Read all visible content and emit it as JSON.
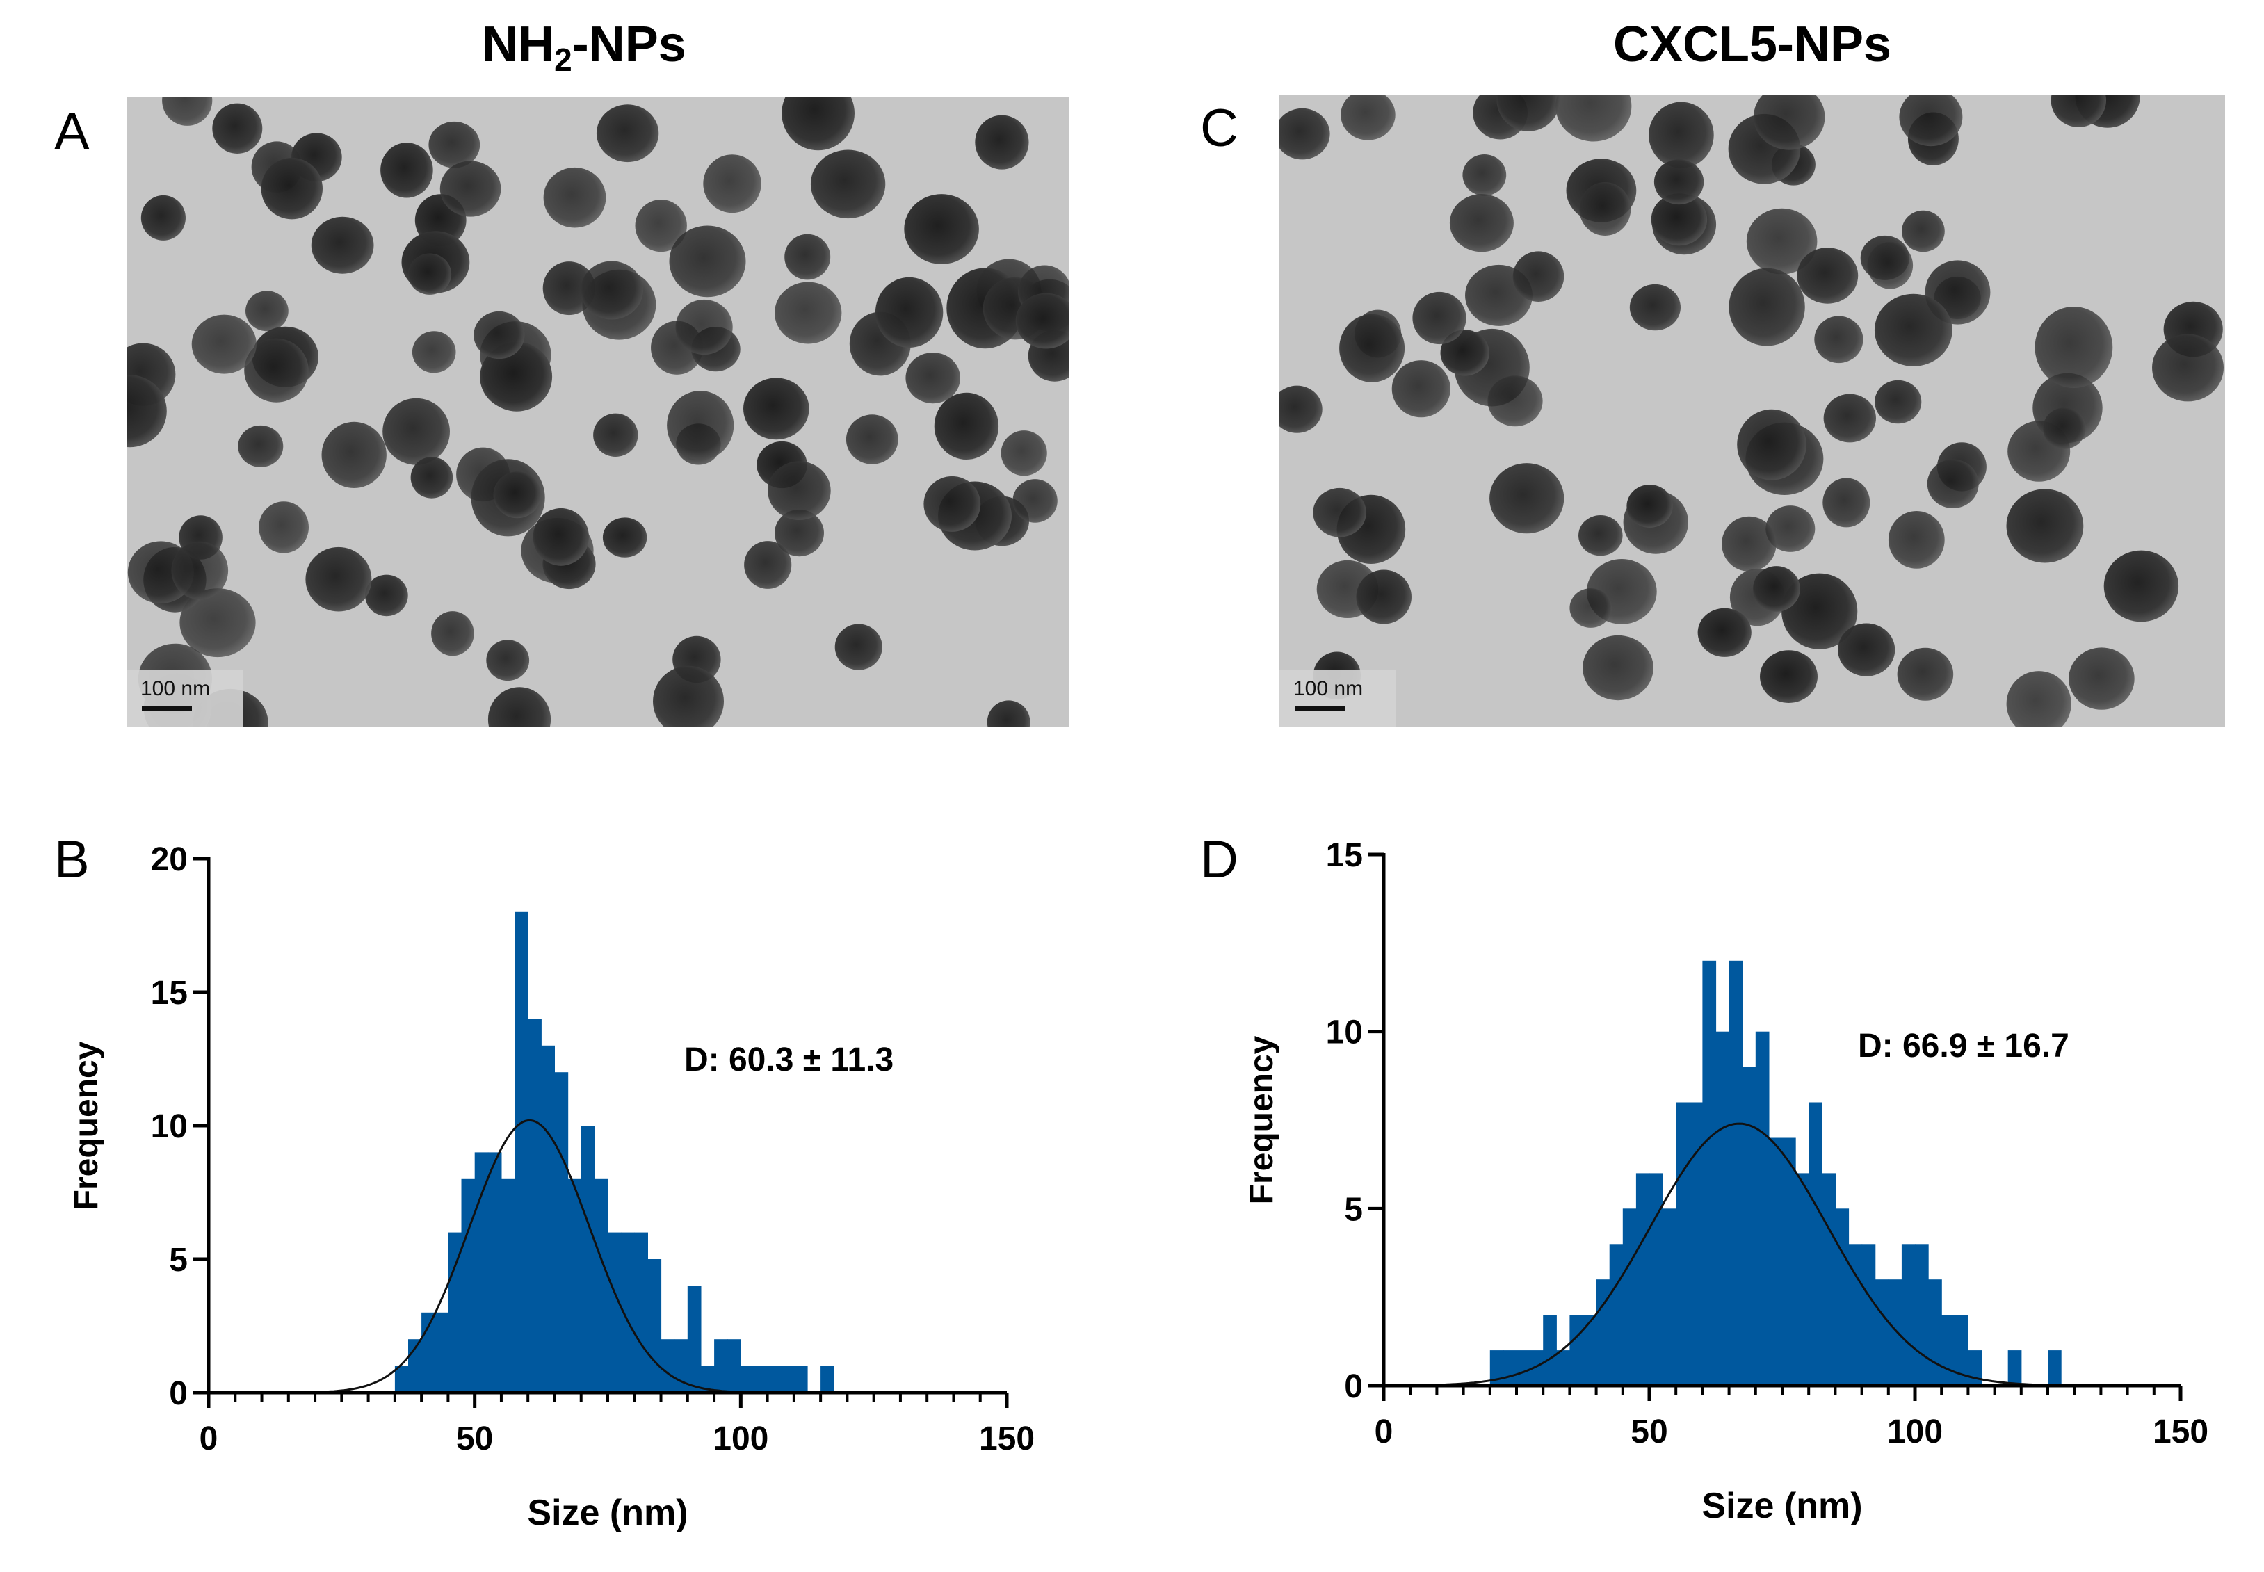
{
  "titles": {
    "left_main": "NH",
    "left_sub": "2",
    "left_tail": "-NPs",
    "right": "CXCL5-NPs"
  },
  "panels": {
    "a": "A",
    "b": "B",
    "c": "C",
    "d": "D"
  },
  "micrographs": {
    "left_scale_label": "100 nm",
    "right_scale_label": "100 nm"
  },
  "colors": {
    "bar": "#00589E",
    "curve": "#111111",
    "axis": "#000000",
    "tem_bg": "#c6c6c6",
    "particle": "#3a3a3a"
  },
  "chart_data": [
    {
      "type": "bar",
      "panel": "B",
      "xlabel": "Size (nm)",
      "ylabel": "Frequency",
      "xlim": [
        0,
        150
      ],
      "ylim": [
        0,
        20
      ],
      "xticks": [
        0,
        50,
        100,
        150
      ],
      "yticks": [
        0,
        5,
        10,
        15,
        20
      ],
      "annotation": "D: 60.3 ± 11.3",
      "fit": {
        "type": "gaussian",
        "mean": 60.3,
        "sd": 11.3,
        "peak": 10.2
      },
      "bin_width": 2.5,
      "bins": [
        {
          "x": 35,
          "y": 1
        },
        {
          "x": 37.5,
          "y": 2
        },
        {
          "x": 40,
          "y": 3
        },
        {
          "x": 42.5,
          "y": 3
        },
        {
          "x": 45,
          "y": 6
        },
        {
          "x": 47.5,
          "y": 8
        },
        {
          "x": 50,
          "y": 9
        },
        {
          "x": 52.5,
          "y": 9
        },
        {
          "x": 55,
          "y": 8
        },
        {
          "x": 57.5,
          "y": 18
        },
        {
          "x": 60,
          "y": 14
        },
        {
          "x": 62.5,
          "y": 13
        },
        {
          "x": 65,
          "y": 12
        },
        {
          "x": 67.5,
          "y": 8
        },
        {
          "x": 70,
          "y": 10
        },
        {
          "x": 72.5,
          "y": 8
        },
        {
          "x": 75,
          "y": 6
        },
        {
          "x": 77.5,
          "y": 6
        },
        {
          "x": 80,
          "y": 6
        },
        {
          "x": 82.5,
          "y": 5
        },
        {
          "x": 85,
          "y": 2
        },
        {
          "x": 87.5,
          "y": 2
        },
        {
          "x": 90,
          "y": 4
        },
        {
          "x": 92.5,
          "y": 1
        },
        {
          "x": 95,
          "y": 2
        },
        {
          "x": 97.5,
          "y": 2
        },
        {
          "x": 100,
          "y": 1
        },
        {
          "x": 102.5,
          "y": 1
        },
        {
          "x": 105,
          "y": 1
        },
        {
          "x": 107.5,
          "y": 1
        },
        {
          "x": 110,
          "y": 1
        },
        {
          "x": 112.5,
          "y": 0
        },
        {
          "x": 115,
          "y": 1
        }
      ]
    },
    {
      "type": "bar",
      "panel": "D",
      "xlabel": "Size (nm)",
      "ylabel": "Frequency",
      "xlim": [
        0,
        150
      ],
      "ylim": [
        0,
        15
      ],
      "xticks": [
        0,
        50,
        100,
        150
      ],
      "yticks": [
        0,
        5,
        10,
        15
      ],
      "annotation": "D: 66.9 ± 16.7",
      "fit": {
        "type": "gaussian",
        "mean": 66.9,
        "sd": 16.7,
        "peak": 7.4
      },
      "bin_width": 2.5,
      "bins": [
        {
          "x": 20,
          "y": 1
        },
        {
          "x": 22.5,
          "y": 1
        },
        {
          "x": 25,
          "y": 1
        },
        {
          "x": 27.5,
          "y": 1
        },
        {
          "x": 30,
          "y": 2
        },
        {
          "x": 32.5,
          "y": 1
        },
        {
          "x": 35,
          "y": 2
        },
        {
          "x": 37.5,
          "y": 2
        },
        {
          "x": 40,
          "y": 3
        },
        {
          "x": 42.5,
          "y": 4
        },
        {
          "x": 45,
          "y": 5
        },
        {
          "x": 47.5,
          "y": 6
        },
        {
          "x": 50,
          "y": 6
        },
        {
          "x": 52.5,
          "y": 5
        },
        {
          "x": 55,
          "y": 8
        },
        {
          "x": 57.5,
          "y": 8
        },
        {
          "x": 60,
          "y": 12
        },
        {
          "x": 62.5,
          "y": 10
        },
        {
          "x": 65,
          "y": 12
        },
        {
          "x": 67.5,
          "y": 9
        },
        {
          "x": 70,
          "y": 10
        },
        {
          "x": 72.5,
          "y": 7
        },
        {
          "x": 75,
          "y": 7
        },
        {
          "x": 77.5,
          "y": 6
        },
        {
          "x": 80,
          "y": 8
        },
        {
          "x": 82.5,
          "y": 6
        },
        {
          "x": 85,
          "y": 5
        },
        {
          "x": 87.5,
          "y": 4
        },
        {
          "x": 90,
          "y": 4
        },
        {
          "x": 92.5,
          "y": 3
        },
        {
          "x": 95,
          "y": 3
        },
        {
          "x": 97.5,
          "y": 4
        },
        {
          "x": 100,
          "y": 4
        },
        {
          "x": 102.5,
          "y": 3
        },
        {
          "x": 105,
          "y": 2
        },
        {
          "x": 107.5,
          "y": 2
        },
        {
          "x": 110,
          "y": 1
        },
        {
          "x": 112.5,
          "y": 0
        },
        {
          "x": 115,
          "y": 0
        },
        {
          "x": 117.5,
          "y": 1
        },
        {
          "x": 120,
          "y": 0
        },
        {
          "x": 122.5,
          "y": 0
        },
        {
          "x": 125,
          "y": 1
        }
      ]
    }
  ]
}
